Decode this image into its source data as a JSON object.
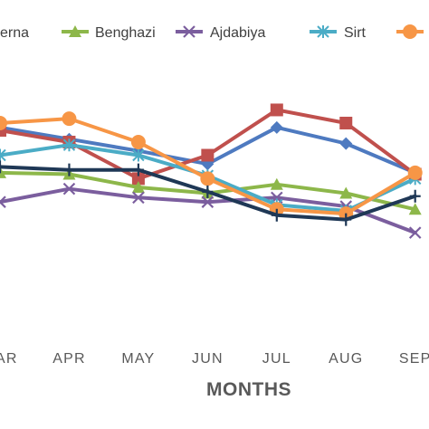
{
  "chart_data": {
    "type": "line",
    "title": "",
    "xlabel": "MONTHS",
    "ylabel": "",
    "categories": [
      "MAR",
      "APR",
      "MAY",
      "JUN",
      "JUL",
      "AUG",
      "SEP"
    ],
    "x_visible_range": [
      1.0,
      7.2
    ],
    "ylim": [
      0,
      100
    ],
    "grid": false,
    "legend_position": "top",
    "series": [
      {
        "name": "Derna",
        "legend_label": "erna",
        "color": "#4e7ac0",
        "marker": "diamond",
        "values": [
          72.5,
          68.5,
          64.5,
          60.0,
          72.5,
          67.0,
          57.0
        ]
      },
      {
        "name": "",
        "legend_label": "",
        "color": "#c0504d",
        "marker": "square",
        "values": [
          71.5,
          67.5,
          55.0,
          63.0,
          78.5,
          74.0,
          56.5
        ]
      },
      {
        "name": "Benghazi",
        "legend_label": "Benghazi",
        "color": "#8db74a",
        "marker": "triangle",
        "values": [
          57.0,
          56.5,
          52.0,
          50.0,
          53.0,
          50.0,
          44.5
        ]
      },
      {
        "name": "Ajdabiya",
        "legend_label": "Ajdabiya",
        "color": "#7b5e9e",
        "marker": "x",
        "values": [
          47.0,
          51.5,
          48.5,
          47.0,
          48.5,
          45.5,
          36.5
        ]
      },
      {
        "name": "Sirt",
        "legend_label": "Sirt",
        "color": "#4bacc6",
        "marker": "asterisk",
        "values": [
          63.0,
          66.5,
          63.0,
          56.0,
          46.0,
          44.0,
          55.0
        ]
      },
      {
        "name": "",
        "legend_label": "",
        "color": "#f79646",
        "marker": "circle",
        "values": [
          74.0,
          75.5,
          67.5,
          55.0,
          44.5,
          43.0,
          57.0
        ]
      },
      {
        "name": "",
        "legend_label": "",
        "color": "#1f3856",
        "marker": "plus",
        "values": [
          59.0,
          58.0,
          58.0,
          50.5,
          42.5,
          41.0,
          49.0
        ]
      }
    ]
  }
}
